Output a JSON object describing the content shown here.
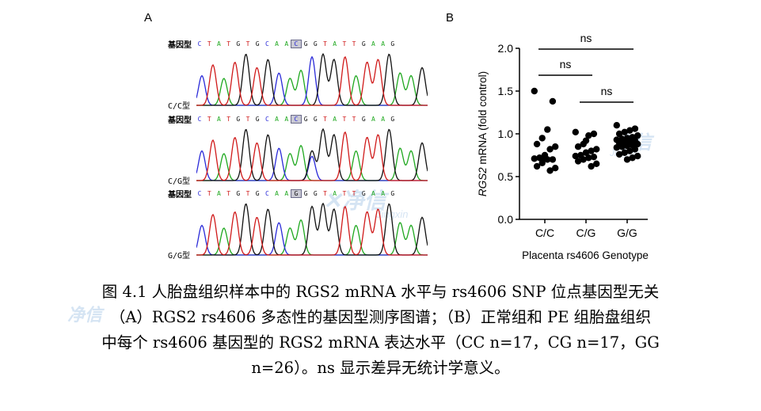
{
  "figure": {
    "panel_a_letter": "A",
    "panel_b_letter": "B",
    "sequence_label": "基因型",
    "traces": [
      {
        "genotype_label": "C/C型",
        "bases": [
          "C",
          "T",
          "A",
          "T",
          "G",
          "T",
          "G",
          "C",
          "A",
          "A",
          "C",
          "G",
          "G",
          "T",
          "A",
          "T",
          "T",
          "G",
          "A",
          "A",
          "G"
        ],
        "highlight_index": 10
      },
      {
        "genotype_label": "C/G型",
        "bases": [
          "C",
          "T",
          "A",
          "T",
          "G",
          "T",
          "G",
          "C",
          "A",
          "A",
          "C",
          "G",
          "G",
          "T",
          "A",
          "T",
          "T",
          "G",
          "A",
          "A",
          "G"
        ],
        "highlight_index": 10
      },
      {
        "genotype_label": "G/G型",
        "bases": [
          "C",
          "T",
          "A",
          "T",
          "G",
          "T",
          "G",
          "C",
          "A",
          "A",
          "G",
          "G",
          "G",
          "T",
          "A",
          "T",
          "T",
          "G",
          "A",
          "A",
          "G"
        ],
        "highlight_index": 10
      }
    ],
    "colors": {
      "A": "#1fa81f",
      "C": "#2a2ad8",
      "G": "#111111",
      "T": "#d01a1a",
      "dots": "#000000"
    }
  },
  "watermark": {
    "name_cn": "净信",
    "name_en": "Jingxin"
  },
  "chart_data": {
    "type": "scatter",
    "ylabel_italic": "RGS2",
    "ylabel_rest": " mRNA (fold control)",
    "xlabel": "Placenta rs4606 Genotype",
    "categories": [
      "C/C",
      "C/G",
      "G/G"
    ],
    "ylim": [
      0.0,
      2.0
    ],
    "yticks": [
      "0.0",
      "0.5",
      "1.0",
      "1.5",
      "2.0"
    ],
    "series": [
      {
        "category": "C/C",
        "values": [
          1.5,
          1.38,
          1.05,
          0.95,
          0.88,
          0.85,
          0.82,
          0.75,
          0.72,
          0.71,
          0.7,
          0.7,
          0.66,
          0.62,
          0.6,
          0.57,
          0.72
        ]
      },
      {
        "category": "C/G",
        "values": [
          1.02,
          1.0,
          0.98,
          0.88,
          0.85,
          0.82,
          0.8,
          0.78,
          0.75,
          0.74,
          0.73,
          0.72,
          0.7,
          0.68,
          0.65,
          0.62,
          0.92
        ]
      },
      {
        "category": "G/G",
        "values": [
          1.1,
          1.06,
          1.04,
          1.02,
          1.0,
          0.98,
          0.96,
          0.95,
          0.94,
          0.93,
          0.92,
          0.91,
          0.9,
          0.89,
          0.88,
          0.87,
          0.86,
          0.85,
          0.84,
          0.82,
          0.8,
          0.78,
          0.76,
          0.74,
          0.72,
          0.7
        ]
      }
    ],
    "comparisons": [
      {
        "label": "ns",
        "from": "C/C",
        "to": "G/G"
      },
      {
        "label": "ns",
        "from": "C/C",
        "to": "C/G"
      },
      {
        "label": "ns",
        "from": "C/G",
        "to": "G/G"
      }
    ]
  },
  "caption": {
    "line1": "图 4.1 人胎盘组织样本中的 RGS2 mRNA 水平与 rs4606 SNP 位点基因型无关",
    "line2": "（A）RGS2 rs4606 多态性的基因型测序图谱；（B）正常组和  PE  组胎盘组织",
    "line3": "中每个 rs4606 基因型的 RGS2 mRNA 表达水平（CC n=17，CG n=17，GG",
    "line4": "n=26）。ns 显示差异无统计学意义。"
  }
}
